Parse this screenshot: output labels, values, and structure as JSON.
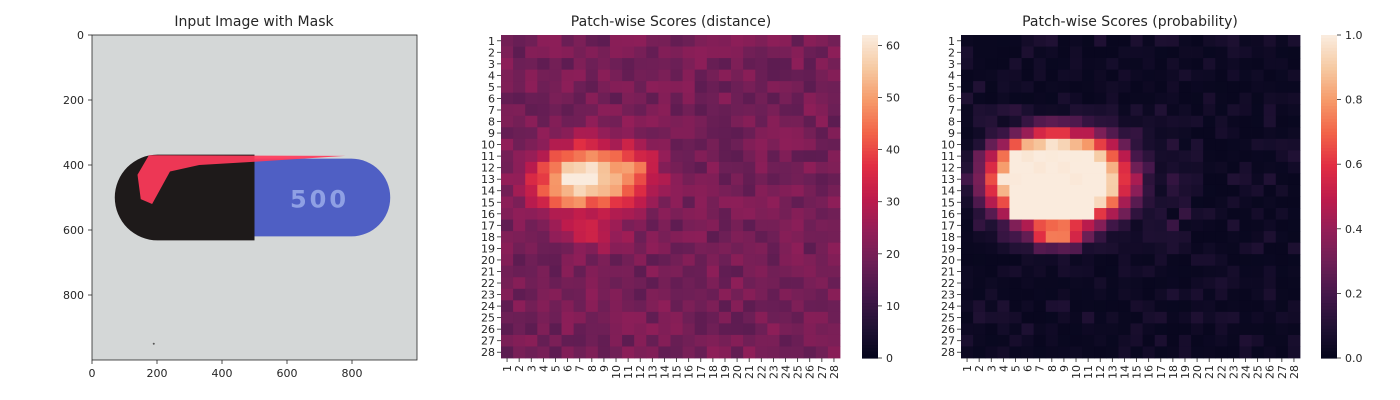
{
  "chart_data": [
    {
      "type": "image",
      "title": "Input Image with Mask",
      "xticks": [
        "0",
        "200",
        "400",
        "600",
        "800"
      ],
      "yticks": [
        "0",
        "200",
        "400",
        "600",
        "800"
      ],
      "xlim": [
        0,
        1000
      ],
      "ylim": [
        1000,
        0
      ],
      "content": {
        "capsule_text": "500",
        "colors": {
          "background": "#d4d7d7",
          "capsule_dark": "#1e1a1a",
          "capsule_blue": "#4f5fc4",
          "mask": "#ff3a5a"
        }
      }
    },
    {
      "type": "heatmap",
      "title": "Patch-wise Scores (distance)",
      "rows": [
        "1",
        "2",
        "3",
        "4",
        "5",
        "6",
        "7",
        "8",
        "9",
        "10",
        "11",
        "12",
        "13",
        "14",
        "15",
        "16",
        "17",
        "18",
        "19",
        "20",
        "21",
        "22",
        "23",
        "24",
        "25",
        "26",
        "27",
        "28"
      ],
      "cols": [
        "1",
        "2",
        "3",
        "4",
        "5",
        "6",
        "7",
        "8",
        "9",
        "10",
        "11",
        "12",
        "13",
        "14",
        "15",
        "16",
        "17",
        "18",
        "19",
        "20",
        "21",
        "22",
        "23",
        "24",
        "25",
        "26",
        "27",
        "28"
      ],
      "colormap": "rocket",
      "vmin": 0,
      "vmax": 62,
      "colorbar_ticks": [
        "0",
        "10",
        "20",
        "30",
        "40",
        "50",
        "60"
      ],
      "hot_region": {
        "row_range": [
          9,
          18
        ],
        "col_range": [
          3,
          14
        ],
        "peak_row": 13,
        "peak_col": 6,
        "peak": 62
      }
    },
    {
      "type": "heatmap",
      "title": "Patch-wise Scores (probability)",
      "rows": [
        "1",
        "2",
        "3",
        "4",
        "5",
        "6",
        "7",
        "8",
        "9",
        "10",
        "11",
        "12",
        "13",
        "14",
        "15",
        "16",
        "17",
        "18",
        "19",
        "20",
        "21",
        "22",
        "23",
        "24",
        "25",
        "26",
        "27",
        "28"
      ],
      "cols": [
        "1",
        "2",
        "3",
        "4",
        "5",
        "6",
        "7",
        "8",
        "9",
        "10",
        "11",
        "12",
        "13",
        "14",
        "15",
        "16",
        "17",
        "18",
        "19",
        "20",
        "21",
        "22",
        "23",
        "24",
        "25",
        "26",
        "27",
        "28"
      ],
      "colormap": "rocket",
      "vmin": 0,
      "vmax": 1,
      "colorbar_ticks": [
        "0.0",
        "0.2",
        "0.4",
        "0.6",
        "0.8",
        "1.0"
      ],
      "hot_region": {
        "row_range": [
          9,
          18
        ],
        "col_range": [
          3,
          16
        ],
        "peak": 1.0
      }
    }
  ]
}
